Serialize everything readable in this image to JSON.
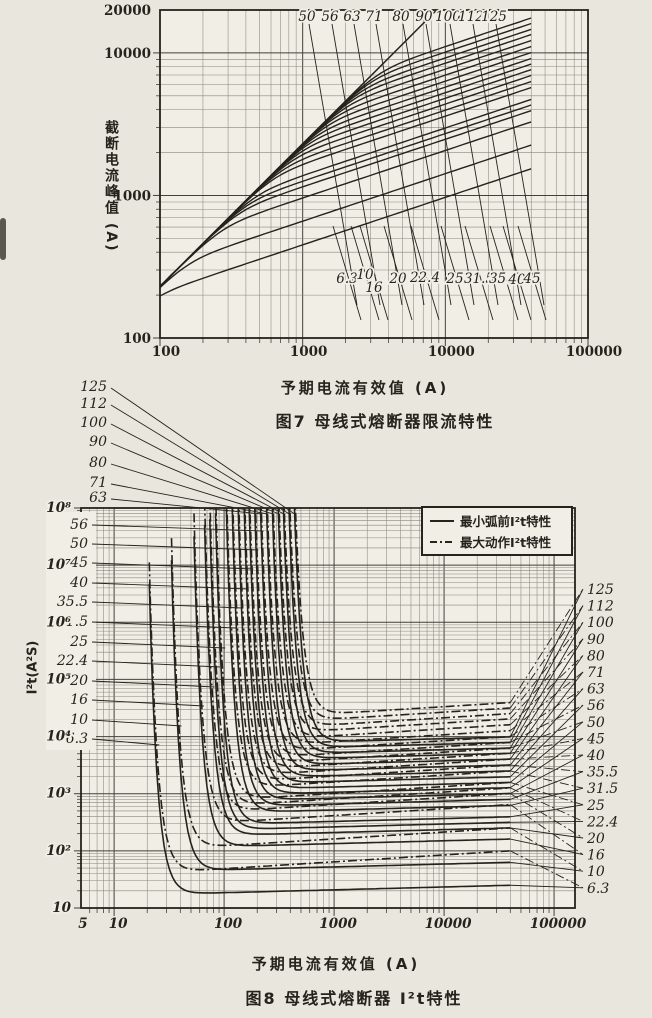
{
  "page": {
    "paper_color": "#e9e6dd",
    "plot_color": "#f1eee6",
    "ink_color": "#26221c"
  },
  "figure7": {
    "caption": "图7  母线式熔断器限流特性",
    "xlabel": "予期电流有效值 (A)",
    "ylabel": "截断电流峰值 (A)"
  },
  "figure8": {
    "caption": "图8  母线式熔断器 I²t特性",
    "xlabel": "予期电流有效值 (A)",
    "ylabel": "I²t(A²S)",
    "legend": {
      "position": "top-right",
      "items": [
        {
          "label": "最小弧前I²t特性",
          "style": "solid"
        },
        {
          "label": "最大动作I²t特性",
          "style": "dashdot"
        }
      ]
    }
  },
  "chart_data": [
    {
      "id": "fig7",
      "type": "line",
      "title": "图7 母线式熔断器限流特性",
      "xlabel": "予期电流有效值 (A)",
      "ylabel": "截断电流峰值 (A)",
      "xscale": "log",
      "yscale": "log",
      "xlim": [
        100,
        100000
      ],
      "ylim": [
        100,
        20000
      ],
      "xticks": [
        100,
        1000,
        10000,
        100000
      ],
      "yticks": [
        100,
        1000,
        10000,
        20000
      ],
      "grid": "log-minor",
      "curve_model": "cutoff_peak = min(2.3*I_prospective, k*I_prospective^(1/3)) for 100<=I<=40000",
      "diagonal_reference": {
        "y_equals": "2.3*x",
        "from_x": 100,
        "to_y": 20000
      },
      "series": [
        {
          "rating": 6.3,
          "k": 45
        },
        {
          "rating": 10,
          "k": 66
        },
        {
          "rating": 16,
          "k": 96
        },
        {
          "rating": 20,
          "k": 115
        },
        {
          "rating": 22.4,
          "k": 126
        },
        {
          "rating": 25,
          "k": 138
        },
        {
          "rating": 31.5,
          "k": 167
        },
        {
          "rating": 35.5,
          "k": 184
        },
        {
          "rating": 40,
          "k": 203
        },
        {
          "rating": 45,
          "k": 223
        },
        {
          "rating": 50,
          "k": 244
        },
        {
          "rating": 56,
          "k": 267
        },
        {
          "rating": 63,
          "k": 294
        },
        {
          "rating": 71,
          "k": 324
        },
        {
          "rating": 80,
          "k": 357
        },
        {
          "rating": 90,
          "k": 393
        },
        {
          "rating": 100,
          "k": 428
        },
        {
          "rating": 112,
          "k": 470
        },
        {
          "rating": 125,
          "k": 514
        }
      ],
      "top_labels": [
        "50",
        "56",
        "63",
        "71",
        "80",
        "90",
        "100",
        "112",
        "125"
      ],
      "mid_labels": [
        "6.3",
        "10",
        "16",
        "20",
        "22.4",
        "25",
        "31.5",
        "35.5",
        "40",
        "45"
      ]
    },
    {
      "id": "fig8",
      "type": "line",
      "title": "图8 母线式熔断器 I²t特性",
      "xlabel": "予期电流有效值 (A)",
      "ylabel": "I²t(A²S)",
      "xscale": "log",
      "yscale": "log",
      "xlim": [
        5,
        100000
      ],
      "ylim": [
        10,
        100000000
      ],
      "xticks": [
        5,
        10,
        100,
        1000,
        10000,
        100000
      ],
      "ytick_labels": [
        "10",
        "10²",
        "10³",
        "10⁴",
        "10⁵",
        "10⁶",
        "10⁷",
        "10⁸"
      ],
      "grid": "log-minor",
      "curve_model": "I2t = flat * 10^(4*(Imelt/I)^6) * (I/40000)^r ; r=0.05 prearc, r=0.12 operating ; Imelt<=I<=40000",
      "series": [
        {
          "rating": 6.3,
          "min_prearc_I2t": 25,
          "max_operating_I2t": 100,
          "melting_current": 22
        },
        {
          "rating": 10,
          "min_prearc_I2t": 63,
          "max_operating_I2t": 252,
          "melting_current": 35
        },
        {
          "rating": 16,
          "min_prearc_I2t": 161,
          "max_operating_I2t": 645,
          "melting_current": 56
        },
        {
          "rating": 20,
          "min_prearc_I2t": 252,
          "max_operating_I2t": 1008,
          "melting_current": 70
        },
        {
          "rating": 22.4,
          "min_prearc_I2t": 316,
          "max_operating_I2t": 1264,
          "melting_current": 78
        },
        {
          "rating": 25,
          "min_prearc_I2t": 394,
          "max_operating_I2t": 1575,
          "melting_current": 88
        },
        {
          "rating": 31.5,
          "min_prearc_I2t": 625,
          "max_operating_I2t": 2500,
          "melting_current": 110
        },
        {
          "rating": 35.5,
          "min_prearc_I2t": 794,
          "max_operating_I2t": 3176,
          "melting_current": 124
        },
        {
          "rating": 40,
          "min_prearc_I2t": 1008,
          "max_operating_I2t": 4032,
          "melting_current": 140
        },
        {
          "rating": 45,
          "min_prearc_I2t": 1276,
          "max_operating_I2t": 5104,
          "melting_current": 158
        },
        {
          "rating": 50,
          "min_prearc_I2t": 1575,
          "max_operating_I2t": 6300,
          "melting_current": 175
        },
        {
          "rating": 56,
          "min_prearc_I2t": 1976,
          "max_operating_I2t": 7904,
          "melting_current": 196
        },
        {
          "rating": 63,
          "min_prearc_I2t": 2501,
          "max_operating_I2t": 10004,
          "melting_current": 220
        },
        {
          "rating": 71,
          "min_prearc_I2t": 3176,
          "max_operating_I2t": 12704,
          "melting_current": 249
        },
        {
          "rating": 80,
          "min_prearc_I2t": 4032,
          "max_operating_I2t": 16128,
          "melting_current": 280
        },
        {
          "rating": 90,
          "min_prearc_I2t": 5103,
          "max_operating_I2t": 20412,
          "melting_current": 315
        },
        {
          "rating": 100,
          "min_prearc_I2t": 6300,
          "max_operating_I2t": 25200,
          "melting_current": 350
        },
        {
          "rating": 112,
          "min_prearc_I2t": 7903,
          "max_operating_I2t": 31612,
          "melting_current": 392
        },
        {
          "rating": 125,
          "min_prearc_I2t": 9844,
          "max_operating_I2t": 39376,
          "melting_current": 438
        }
      ],
      "left_outside_labels": [
        "125",
        "112",
        "100",
        "90",
        "80",
        "71",
        "63"
      ],
      "left_box_labels": [
        "56",
        "50",
        "45",
        "40",
        "35.5",
        "31.5",
        "25",
        "22.4",
        "20",
        "16",
        "10",
        "6.3"
      ],
      "right_labels": [
        "125",
        "112",
        "100",
        "90",
        "80",
        "71",
        "63",
        "56",
        "50",
        "45",
        "40",
        "35.5",
        "31.5",
        "25",
        "22.4",
        "20",
        "16",
        "10",
        "6.3"
      ]
    }
  ]
}
